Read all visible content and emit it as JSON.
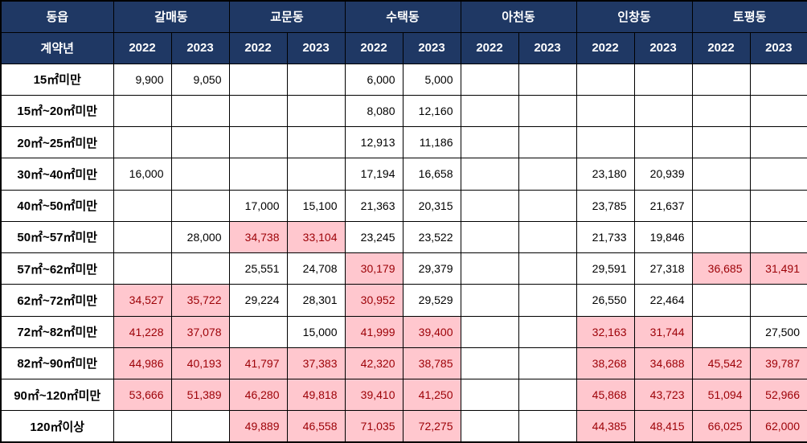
{
  "colors": {
    "header_bg": "#1F3864",
    "header_text": "#FFFFFF",
    "cell_bg": "#FFFFFF",
    "cell_text": "#000000",
    "highlight_bg": "#FFC7CE",
    "highlight_text": "#9C0006",
    "border": "#000000"
  },
  "chart_data": {
    "type": "table",
    "corner_top": "동읍",
    "corner_bottom": "계약년",
    "districts": [
      "갈매동",
      "교문동",
      "수택동",
      "아천동",
      "인창동",
      "토평동"
    ],
    "years": [
      "2022",
      "2023"
    ],
    "rows": [
      {
        "label": "15㎡미만",
        "values": [
          "9,900",
          "9,050",
          "",
          "",
          "6,000",
          "5,000",
          "",
          "",
          "",
          "",
          "",
          ""
        ],
        "flags": [
          0,
          0,
          0,
          0,
          0,
          0,
          0,
          0,
          0,
          0,
          0,
          0
        ]
      },
      {
        "label": "15㎡~20㎡미만",
        "values": [
          "",
          "",
          "",
          "",
          "8,080",
          "12,160",
          "",
          "",
          "",
          "",
          "",
          ""
        ],
        "flags": [
          0,
          0,
          0,
          0,
          0,
          0,
          0,
          0,
          0,
          0,
          0,
          0
        ]
      },
      {
        "label": "20㎡~25㎡미만",
        "values": [
          "",
          "",
          "",
          "",
          "12,913",
          "11,186",
          "",
          "",
          "",
          "",
          "",
          ""
        ],
        "flags": [
          0,
          0,
          0,
          0,
          0,
          0,
          0,
          0,
          0,
          0,
          0,
          0
        ]
      },
      {
        "label": "30㎡~40㎡미만",
        "values": [
          "16,000",
          "",
          "",
          "",
          "17,194",
          "16,658",
          "",
          "",
          "23,180",
          "20,939",
          "",
          ""
        ],
        "flags": [
          0,
          0,
          0,
          0,
          0,
          0,
          0,
          0,
          0,
          0,
          0,
          0
        ]
      },
      {
        "label": "40㎡~50㎡미만",
        "values": [
          "",
          "",
          "17,000",
          "15,100",
          "21,363",
          "20,315",
          "",
          "",
          "23,785",
          "21,637",
          "",
          ""
        ],
        "flags": [
          0,
          0,
          0,
          0,
          0,
          0,
          0,
          0,
          0,
          0,
          0,
          0
        ]
      },
      {
        "label": "50㎡~57㎡미만",
        "values": [
          "",
          "28,000",
          "34,738",
          "33,104",
          "23,245",
          "23,522",
          "",
          "",
          "21,733",
          "19,846",
          "",
          ""
        ],
        "flags": [
          0,
          0,
          1,
          1,
          0,
          0,
          0,
          0,
          0,
          0,
          0,
          0
        ]
      },
      {
        "label": "57㎡~62㎡미만",
        "values": [
          "",
          "",
          "25,551",
          "24,708",
          "30,179",
          "29,379",
          "",
          "",
          "29,591",
          "27,318",
          "36,685",
          "31,491"
        ],
        "flags": [
          0,
          0,
          0,
          0,
          1,
          0,
          0,
          0,
          0,
          0,
          1,
          1
        ]
      },
      {
        "label": "62㎡~72㎡미만",
        "values": [
          "34,527",
          "35,722",
          "29,224",
          "28,301",
          "30,952",
          "29,529",
          "",
          "",
          "26,550",
          "22,464",
          "",
          ""
        ],
        "flags": [
          1,
          1,
          0,
          0,
          1,
          0,
          0,
          0,
          0,
          0,
          0,
          0
        ]
      },
      {
        "label": "72㎡~82㎡미만",
        "values": [
          "41,228",
          "37,078",
          "",
          "15,000",
          "41,999",
          "39,400",
          "",
          "",
          "32,163",
          "31,744",
          "",
          "27,500"
        ],
        "flags": [
          1,
          1,
          0,
          0,
          1,
          1,
          0,
          0,
          1,
          1,
          0,
          0
        ]
      },
      {
        "label": "82㎡~90㎡미만",
        "values": [
          "44,986",
          "40,193",
          "41,797",
          "37,383",
          "42,320",
          "38,785",
          "",
          "",
          "38,268",
          "34,688",
          "45,542",
          "39,787"
        ],
        "flags": [
          1,
          1,
          1,
          1,
          1,
          1,
          0,
          0,
          1,
          1,
          1,
          1
        ]
      },
      {
        "label": "90㎡~120㎡미만",
        "values": [
          "53,666",
          "51,389",
          "46,280",
          "49,818",
          "39,410",
          "41,250",
          "",
          "",
          "45,868",
          "43,723",
          "51,094",
          "52,966"
        ],
        "flags": [
          1,
          1,
          1,
          1,
          1,
          1,
          0,
          0,
          1,
          1,
          1,
          1
        ]
      },
      {
        "label": "120㎡이상",
        "values": [
          "",
          "",
          "49,889",
          "46,558",
          "71,035",
          "72,275",
          "",
          "",
          "44,385",
          "48,415",
          "66,025",
          "62,000"
        ],
        "flags": [
          0,
          0,
          1,
          1,
          1,
          1,
          0,
          0,
          1,
          1,
          1,
          1
        ]
      }
    ]
  }
}
